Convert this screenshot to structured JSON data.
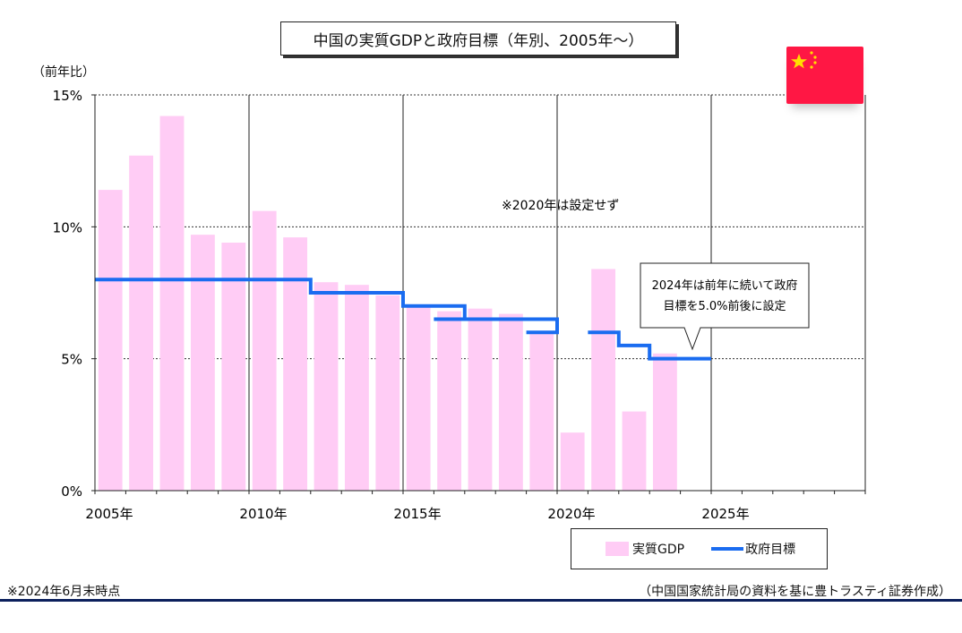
{
  "title": "中国の実質GDPと政府目標（年別、2005年～）",
  "unit_label": "（前年比）",
  "notes": {
    "no_target_2020": "※2020年は設定せず",
    "callout_line1": "2024年は前年に続いて政府",
    "callout_line2": "目標を5.0%前後に設定",
    "as_of": "※2024年6月末時点",
    "source": "（中国国家統計局の資料を基に豊トラスティ証券作成）"
  },
  "legend": {
    "gdp": "実質GDP",
    "target": "政府目標"
  },
  "colors": {
    "bar": "#ffccf5",
    "target_line": "#1a6cf0",
    "flag_red": "#ff1744",
    "flag_star": "#ffde00",
    "rule": "#0b1f5c"
  },
  "chart_data": {
    "type": "bar",
    "x": [
      2005,
      2006,
      2007,
      2008,
      2009,
      2010,
      2011,
      2012,
      2013,
      2014,
      2015,
      2016,
      2017,
      2018,
      2019,
      2020,
      2021,
      2022,
      2023,
      2024
    ],
    "xlim": [
      2005,
      2030
    ],
    "ylim": [
      0,
      15
    ],
    "y_ticks": [
      "0%",
      "5%",
      "10%",
      "15%"
    ],
    "x_ticks": [
      "2005年",
      "2010年",
      "2015年",
      "2020年",
      "2025年"
    ],
    "series": [
      {
        "name": "実質GDP",
        "type": "bar",
        "values": [
          11.4,
          12.7,
          14.2,
          9.7,
          9.4,
          10.6,
          9.6,
          7.9,
          7.8,
          7.4,
          7.0,
          6.8,
          6.9,
          6.7,
          6.0,
          2.2,
          8.4,
          3.0,
          5.2,
          null
        ]
      },
      {
        "name": "政府目標",
        "type": "step",
        "segments": [
          {
            "from": 2005,
            "to": 2012,
            "value": 8.0
          },
          {
            "from": 2012,
            "to": 2015,
            "value": 7.5
          },
          {
            "from": 2015,
            "to": 2016,
            "value": 7.0
          },
          {
            "from": 2016,
            "to": 2017,
            "value": 6.5,
            "upper": 7.0
          },
          {
            "from": 2017,
            "to": 2019,
            "value": 6.5
          },
          {
            "from": 2019,
            "to": 2020,
            "value": 6.0,
            "upper": 6.5
          },
          {
            "from": 2021,
            "to": 2022,
            "value": 6.0
          },
          {
            "from": 2022,
            "to": 2023,
            "value": 5.5
          },
          {
            "from": 2023,
            "to": 2025,
            "value": 5.0
          }
        ]
      }
    ],
    "grid": true,
    "legend_position": "bottom-right"
  }
}
